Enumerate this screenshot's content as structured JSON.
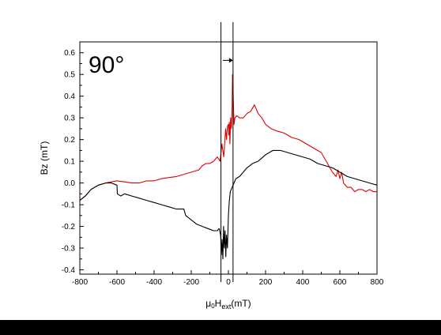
{
  "chart_data": {
    "type": "line",
    "panel_label": "90°",
    "xlabel": {
      "base": "μ",
      "sub1": "0",
      "mid": "H",
      "sub2": "ext",
      "unit": "(mT)"
    },
    "ylabel": "Bz (mT)",
    "xlim": [
      -800,
      800
    ],
    "ylim": [
      -0.42,
      0.65
    ],
    "x_ticks": [
      -800,
      -600,
      -400,
      -200,
      0,
      200,
      400,
      600,
      800
    ],
    "x_tick_labels": [
      "-800",
      "-600",
      "-400",
      "-200",
      "0",
      "200",
      "400",
      "600",
      "800"
    ],
    "y_ticks": [
      -0.4,
      -0.3,
      -0.2,
      -0.1,
      0.0,
      0.1,
      0.2,
      0.3,
      0.4,
      0.5,
      0.6
    ],
    "y_tick_labels": [
      "-0.4",
      "-0.3",
      "-0.2",
      "-0.1",
      "0.0",
      "0.1",
      "0.2",
      "0.3",
      "0.4",
      "0.5",
      "0.6"
    ],
    "grid": false,
    "legend": "none",
    "vertical_lines_x": [
      -40,
      25
    ],
    "arrow": {
      "from_x": -30,
      "to_x": 25,
      "y": 0.565
    },
    "series": [
      {
        "color": "#e00000",
        "x": [
          -800,
          -770,
          -740,
          -700,
          -660,
          -630,
          -600,
          -560,
          -520,
          -480,
          -440,
          -400,
          -360,
          -320,
          -280,
          -240,
          -200,
          -160,
          -140,
          -120,
          -100,
          -80,
          -60,
          -45,
          -35,
          -25,
          -15,
          -10,
          -5,
          0,
          2,
          5,
          8,
          12,
          16,
          20,
          22,
          25,
          28,
          30,
          35,
          45,
          60,
          80,
          100,
          120,
          140,
          150,
          160,
          180,
          200,
          230,
          260,
          300,
          340,
          380,
          420,
          460,
          500,
          520,
          540,
          560,
          580,
          590,
          600,
          610,
          620,
          640,
          660,
          680,
          700,
          720,
          740,
          760,
          780,
          800
        ],
        "y": [
          -0.08,
          -0.06,
          -0.03,
          -0.01,
          0.0,
          0.005,
          0.01,
          0.005,
          0.0,
          0.0,
          0.01,
          0.01,
          0.02,
          0.025,
          0.03,
          0.04,
          0.05,
          0.06,
          0.08,
          0.09,
          0.09,
          0.1,
          0.12,
          0.1,
          0.18,
          0.12,
          0.25,
          0.2,
          0.26,
          0.27,
          0.22,
          0.28,
          0.18,
          0.3,
          0.25,
          0.35,
          0.5,
          0.42,
          0.33,
          0.27,
          0.3,
          0.31,
          0.3,
          0.3,
          0.32,
          0.33,
          0.36,
          0.34,
          0.32,
          0.3,
          0.27,
          0.25,
          0.24,
          0.23,
          0.21,
          0.2,
          0.18,
          0.16,
          0.14,
          0.11,
          0.08,
          0.05,
          0.03,
          0.06,
          0.02,
          0.05,
          0.0,
          -0.02,
          -0.02,
          -0.04,
          -0.03,
          -0.03,
          -0.04,
          -0.03,
          -0.04,
          -0.04
        ]
      },
      {
        "color": "#000000",
        "x": [
          -800,
          -770,
          -740,
          -700,
          -660,
          -630,
          -600,
          -598,
          -580,
          -560,
          -520,
          -480,
          -440,
          -400,
          -360,
          -320,
          -280,
          -240,
          -230,
          -200,
          -170,
          -140,
          -110,
          -80,
          -60,
          -50,
          -42,
          -38,
          -34,
          -30,
          -26,
          -22,
          -18,
          -14,
          -10,
          -5,
          0,
          5,
          10,
          20,
          30,
          40,
          60,
          80,
          100,
          130,
          160,
          200,
          240,
          280,
          320,
          360,
          400,
          440,
          480,
          520,
          560,
          600,
          640,
          680,
          720,
          760,
          800
        ],
        "y": [
          -0.08,
          -0.06,
          -0.03,
          -0.01,
          0.0,
          0.0,
          -0.01,
          -0.05,
          -0.06,
          -0.05,
          -0.06,
          -0.07,
          -0.08,
          -0.09,
          -0.1,
          -0.11,
          -0.12,
          -0.12,
          -0.15,
          -0.17,
          -0.19,
          -0.2,
          -0.21,
          -0.22,
          -0.22,
          -0.21,
          -0.24,
          -0.33,
          -0.26,
          -0.35,
          -0.2,
          -0.3,
          -0.22,
          -0.34,
          -0.24,
          -0.3,
          -0.15,
          -0.08,
          -0.04,
          -0.02,
          0.0,
          0.02,
          0.03,
          0.05,
          0.07,
          0.09,
          0.1,
          0.13,
          0.15,
          0.15,
          0.14,
          0.13,
          0.12,
          0.11,
          0.09,
          0.08,
          0.07,
          0.05,
          0.03,
          0.02,
          0.01,
          0.0,
          -0.01
        ]
      }
    ]
  }
}
